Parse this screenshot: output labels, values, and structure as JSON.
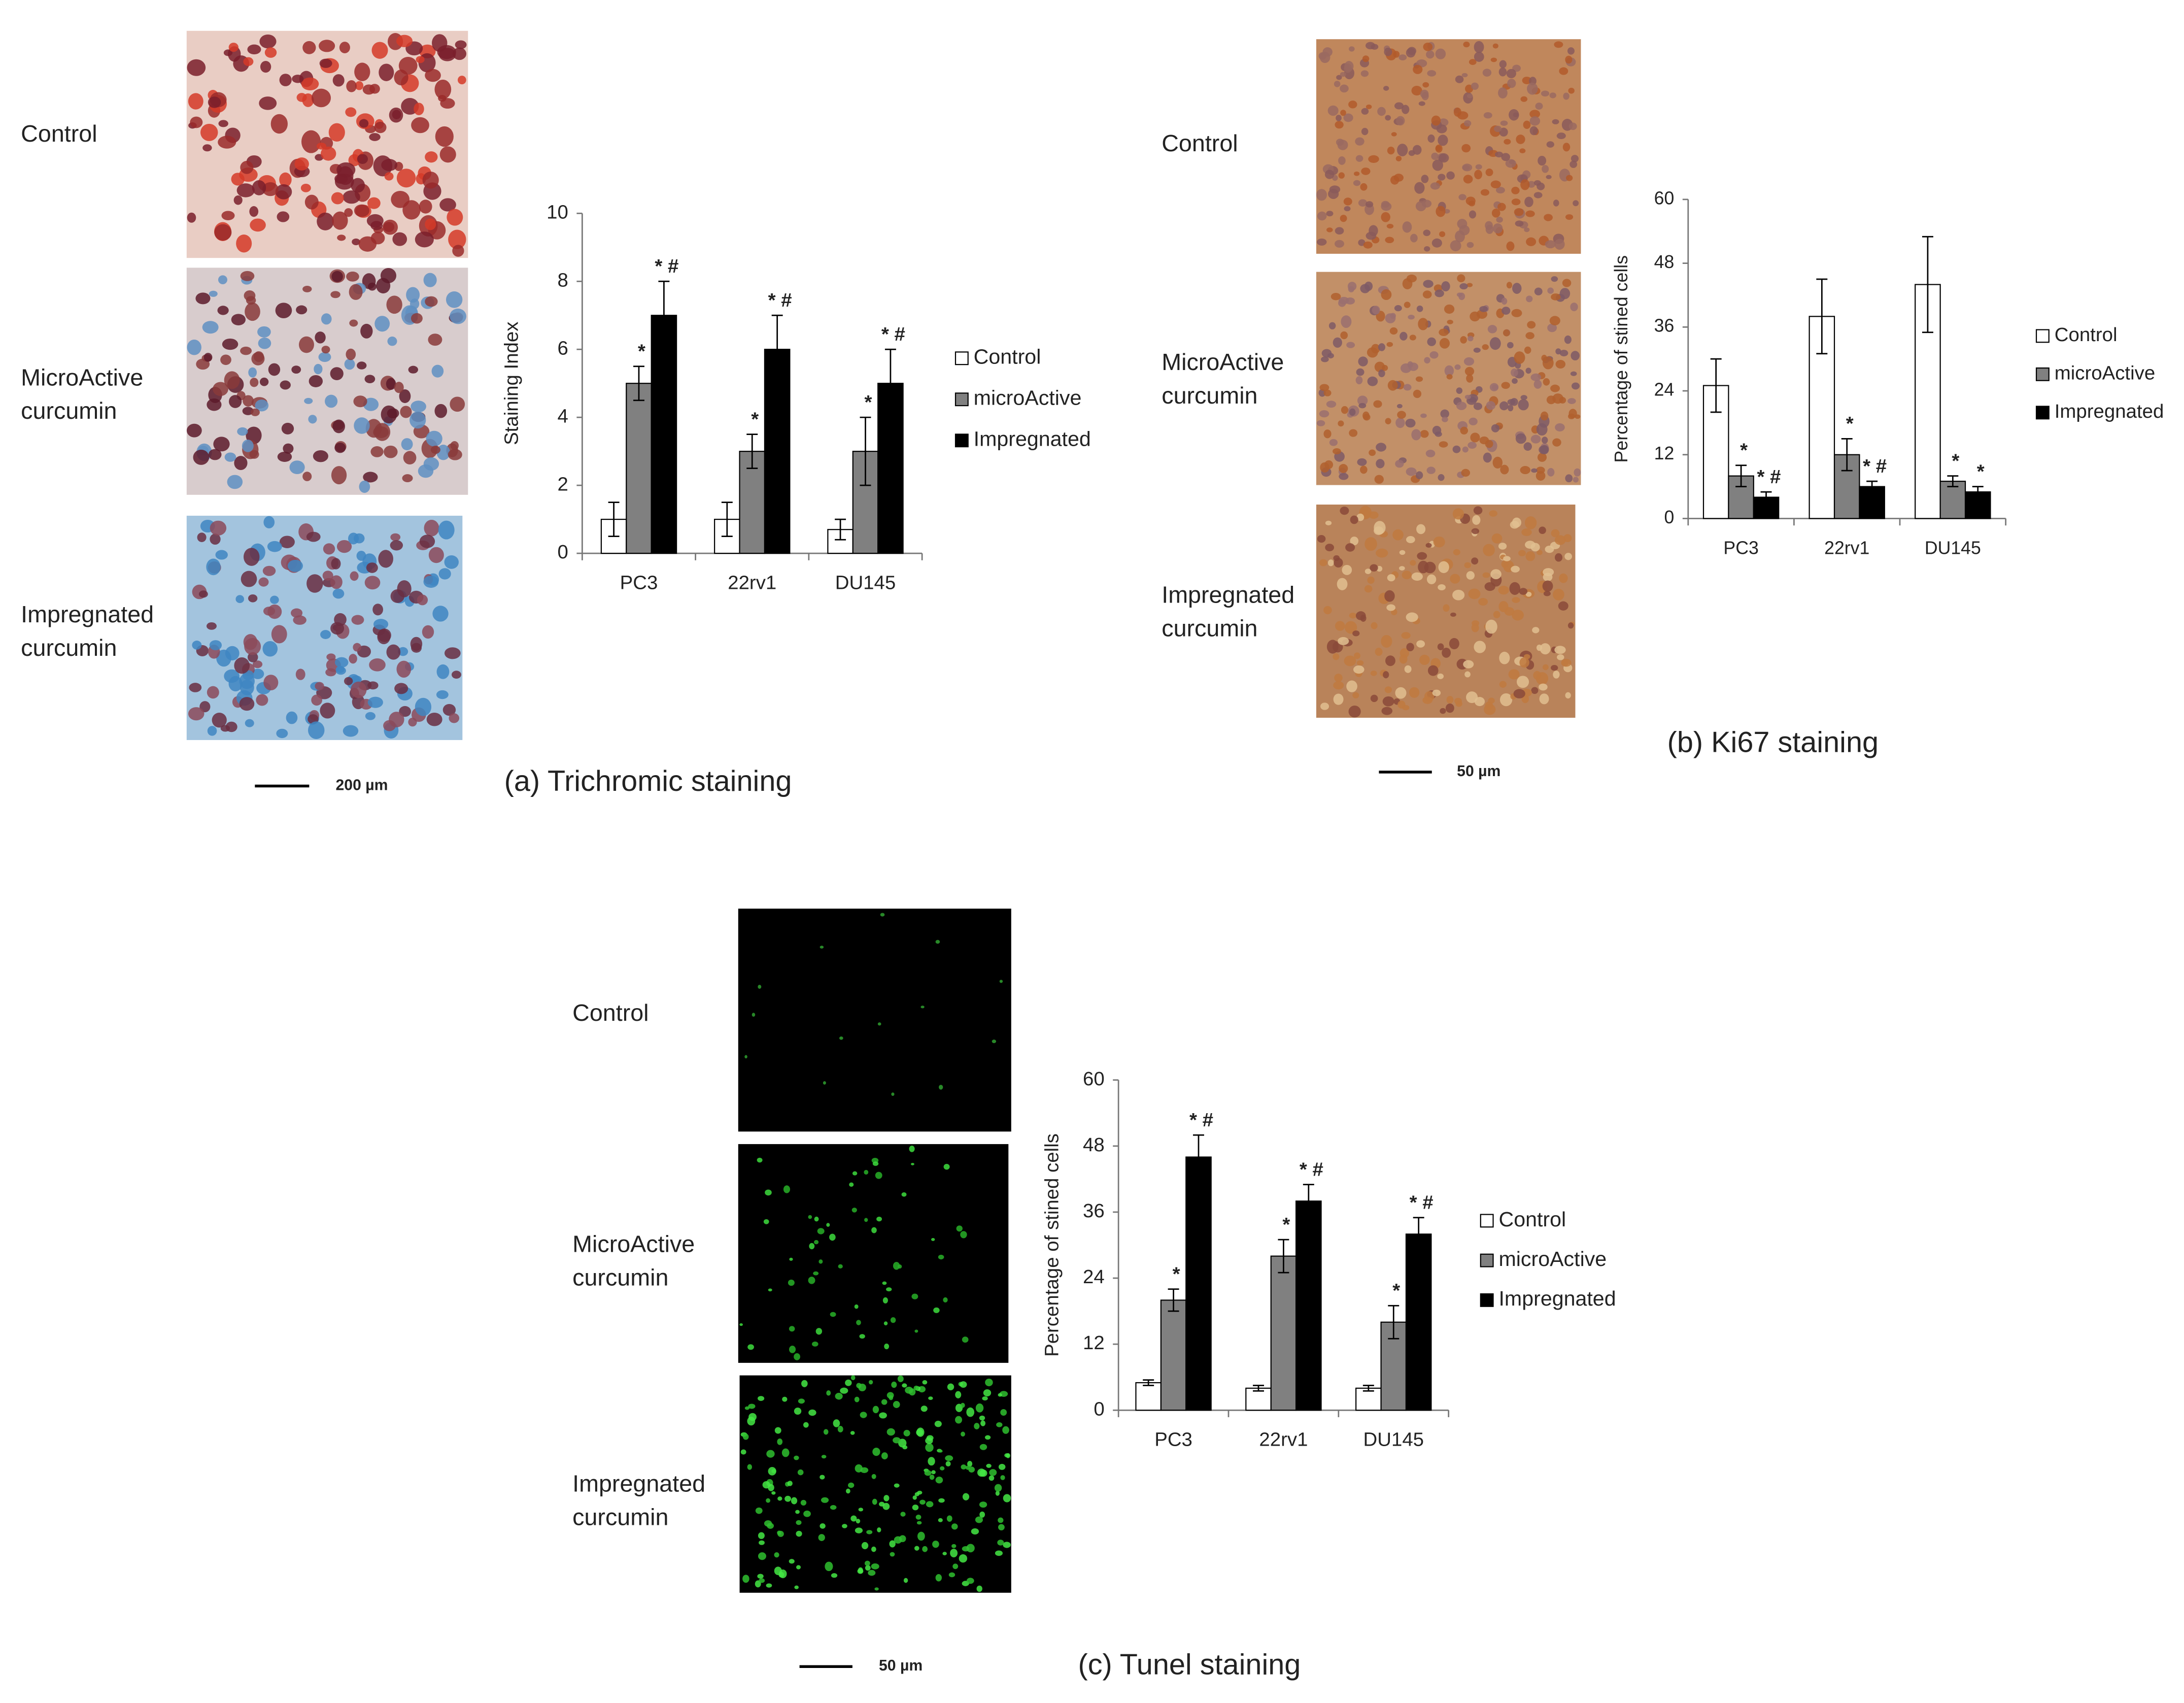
{
  "panels": [
    {
      "image_labels": [
        [
          "Control"
        ],
        [
          "MicroActive",
          "curcumin"
        ],
        [
          "Impregnated",
          "curcumin"
        ]
      ],
      "scale_bar": "200 µm",
      "caption": "(a) Trichromic staining"
    },
    {
      "image_labels": [
        [
          "Control"
        ],
        [
          "MicroActive",
          "curcumin"
        ],
        [
          "Impregnated",
          "curcumin"
        ]
      ],
      "scale_bar": "50 µm",
      "caption": "(b)   Ki67 staining"
    },
    {
      "image_labels": [
        [
          "Control"
        ],
        [
          "MicroActive",
          "curcumin"
        ],
        [
          "Impregnated",
          "curcumin"
        ]
      ],
      "scale_bar": "50 µm",
      "caption": "(c)   Tunel staining"
    }
  ],
  "chart_data": [
    {
      "type": "bar",
      "y_label": "Staining Index",
      "categories": [
        "PC3",
        "22rv1",
        "DU145"
      ],
      "series": [
        {
          "name": "Control",
          "color": "#ffffff",
          "values": [
            1,
            1,
            0.7
          ],
          "errors": [
            0.5,
            0.5,
            0.3
          ]
        },
        {
          "name": "microActive",
          "color": "#808080",
          "values": [
            5,
            3,
            3
          ],
          "errors": [
            0.5,
            0.5,
            1
          ],
          "labels": [
            "*",
            "*",
            "*"
          ]
        },
        {
          "name": "Impregnated",
          "color": "#000000",
          "values": [
            7,
            6,
            5
          ],
          "errors": [
            1,
            1,
            1
          ],
          "labels": [
            "* #",
            "* #",
            "* #"
          ]
        }
      ],
      "ylim": [
        0,
        10
      ],
      "yticks": [
        0,
        2,
        4,
        6,
        8,
        10
      ],
      "legend": "right"
    },
    {
      "type": "bar",
      "y_label": "Percentage of stined cells",
      "categories": [
        "PC3",
        "22rv1",
        "DU145"
      ],
      "series": [
        {
          "name": "Control",
          "color": "#ffffff",
          "values": [
            25,
            38,
            44
          ],
          "errors": [
            5,
            7,
            9
          ]
        },
        {
          "name": "microActive",
          "color": "#808080",
          "values": [
            8,
            12,
            7
          ],
          "errors": [
            2,
            3,
            1
          ],
          "labels": [
            "*",
            "*",
            "*"
          ]
        },
        {
          "name": "Impregnated",
          "color": "#000000",
          "values": [
            4,
            6,
            5
          ],
          "errors": [
            1,
            1,
            1
          ],
          "labels": [
            "* #",
            "* #",
            "*"
          ]
        }
      ],
      "ylim": [
        0,
        60
      ],
      "yticks": [
        0,
        12,
        24,
        36,
        48,
        60
      ],
      "legend": "right"
    },
    {
      "type": "bar",
      "y_label": "Percentage of stined cells",
      "categories": [
        "PC3",
        "22rv1",
        "DU145"
      ],
      "series": [
        {
          "name": "Control",
          "color": "#ffffff",
          "values": [
            5,
            4,
            4
          ],
          "errors": [
            0.5,
            0.5,
            0.5
          ]
        },
        {
          "name": "microActive",
          "color": "#808080",
          "values": [
            20,
            28,
            16
          ],
          "errors": [
            2,
            3,
            3
          ],
          "labels": [
            "*",
            "*",
            "*"
          ]
        },
        {
          "name": "Impregnated",
          "color": "#000000",
          "values": [
            46,
            38,
            32
          ],
          "errors": [
            4,
            3,
            3
          ],
          "labels": [
            "* #",
            "* #",
            "* #"
          ]
        }
      ],
      "ylim": [
        0,
        60
      ],
      "yticks": [
        0,
        12,
        24,
        36,
        48,
        60
      ],
      "legend": "right"
    }
  ]
}
